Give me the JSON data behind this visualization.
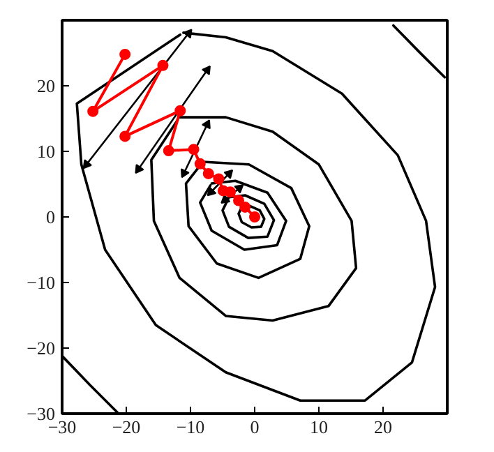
{
  "chart_data": {
    "type": "line",
    "xlim": [
      -30,
      30
    ],
    "ylim": [
      -30,
      30
    ],
    "xticks": [
      {
        "value": -30,
        "label": "−30"
      },
      {
        "value": -20,
        "label": "−20"
      },
      {
        "value": -10,
        "label": "−10"
      },
      0,
      10,
      20
    ],
    "yticks": [
      {
        "value": -30,
        "label": "−30"
      },
      {
        "value": -20,
        "label": "−20"
      },
      {
        "value": -10,
        "label": "−10"
      },
      0,
      10,
      20
    ],
    "grid": false,
    "series": [
      {
        "color": "#000000",
        "marker": "none",
        "x": [
          -11.1,
          -4.5,
          2.8,
          13.6,
          22.3,
          26.7,
          28.1,
          24.5,
          17.2,
          7.1,
          -4.5,
          -15.4,
          -23.3,
          -27,
          -27.7,
          -11.6
        ],
        "values": [
          28.1,
          27.4,
          25.3,
          18.8,
          9.4,
          -0.6,
          -10.7,
          -22.2,
          -28,
          -28,
          -23.7,
          -16.5,
          -5,
          8,
          17.3,
          27.8
        ]
      },
      {
        "color": "#000000",
        "marker": "none",
        "x": [
          -11.7,
          -4.5,
          2.8,
          10,
          15.1,
          15.8,
          11.5,
          2.8,
          -4.5,
          -11.7,
          -15.7,
          -16.1,
          -12.0
        ],
        "values": [
          15.2,
          15.2,
          13,
          8,
          -0.6,
          -7.8,
          -13.6,
          -15.8,
          -15.1,
          -9.3,
          -0.6,
          8.7,
          14.8
        ]
      },
      {
        "color": "#000000",
        "marker": "none",
        "x": [
          -8.1,
          -0.9,
          5.7,
          8.5,
          7.1,
          0.6,
          -5.9,
          -10.3,
          -10.7,
          -8.3
        ],
        "values": [
          8.4,
          8,
          4.4,
          -1.4,
          -6.4,
          -9.3,
          -7.1,
          -1.4,
          5.1,
          8.1
        ]
      },
      {
        "color": "#000000",
        "marker": "none",
        "x": [
          -6.7,
          -3,
          2,
          4.9,
          3.5,
          -1.6,
          -6.7,
          -8.5,
          -6.9
        ],
        "values": [
          5.1,
          5.5,
          3.7,
          -0.6,
          -4.3,
          -5,
          -2.1,
          2.2,
          4.8
        ]
      },
      {
        "color": "#000000",
        "marker": "none",
        "x": [
          -4,
          -1.5,
          1.5,
          3,
          2,
          -1,
          -4,
          -5,
          -4.1
        ],
        "values": [
          3,
          3.3,
          2,
          -0.5,
          -3,
          -3.2,
          -1.5,
          1,
          2.8
        ]
      },
      {
        "color": "#000000",
        "marker": "none",
        "x": [
          -2,
          -0.8,
          0.8,
          1.5,
          1,
          -0.5,
          -2,
          -2.5,
          -2.1
        ],
        "values": [
          1.5,
          1.7,
          1,
          -0.3,
          -1.5,
          -1.6,
          -0.8,
          0.5,
          1.3
        ]
      },
      {
        "color": "#000000",
        "marker": "none",
        "x": [
          21.6,
          25.6,
          29.6
        ],
        "values": [
          29.2,
          25.2,
          21.3
        ]
      },
      {
        "color": "#000000",
        "marker": "none",
        "x": [
          -30,
          -25.6,
          -21.2
        ],
        "values": [
          -21.2,
          -25.7,
          -30
        ]
      },
      {
        "color": "#000000",
        "marker": "triangle",
        "x": [
          -26.2,
          -10.3
        ],
        "values": [
          8.0,
          28.0
        ]
      },
      {
        "color": "#000000",
        "marker": "triangle",
        "x": [
          -18.1,
          -7.4
        ],
        "values": [
          7.3,
          22.4
        ]
      },
      {
        "color": "#000000",
        "marker": "triangle",
        "x": [
          -11.0,
          -7.4
        ],
        "values": [
          6.7,
          14.1
        ]
      },
      {
        "color": "#000000",
        "marker": "triangle",
        "x": [
          -6.8,
          -4.0
        ],
        "values": [
          3.8,
          6.6
        ]
      },
      {
        "color": "#000000",
        "marker": "triangle",
        "x": [
          -4.6,
          -2.4
        ],
        "values": [
          2.6,
          4.4
        ]
      },
      {
        "color": "#ff0000",
        "marker": "circle",
        "x": [
          -20.2,
          -25.2,
          -14.3,
          -20.2,
          -11.6,
          -13.4,
          -9.5,
          -8.5,
          -7.2,
          -5.6,
          -4.9,
          -3.8,
          -2.5,
          -1.5,
          0
        ],
        "values": [
          24.8,
          16.1,
          23.1,
          12.3,
          16.2,
          10.1,
          10.3,
          8.1,
          6.6,
          5.8,
          4.0,
          3.8,
          2.5,
          1.5,
          0
        ]
      }
    ]
  }
}
